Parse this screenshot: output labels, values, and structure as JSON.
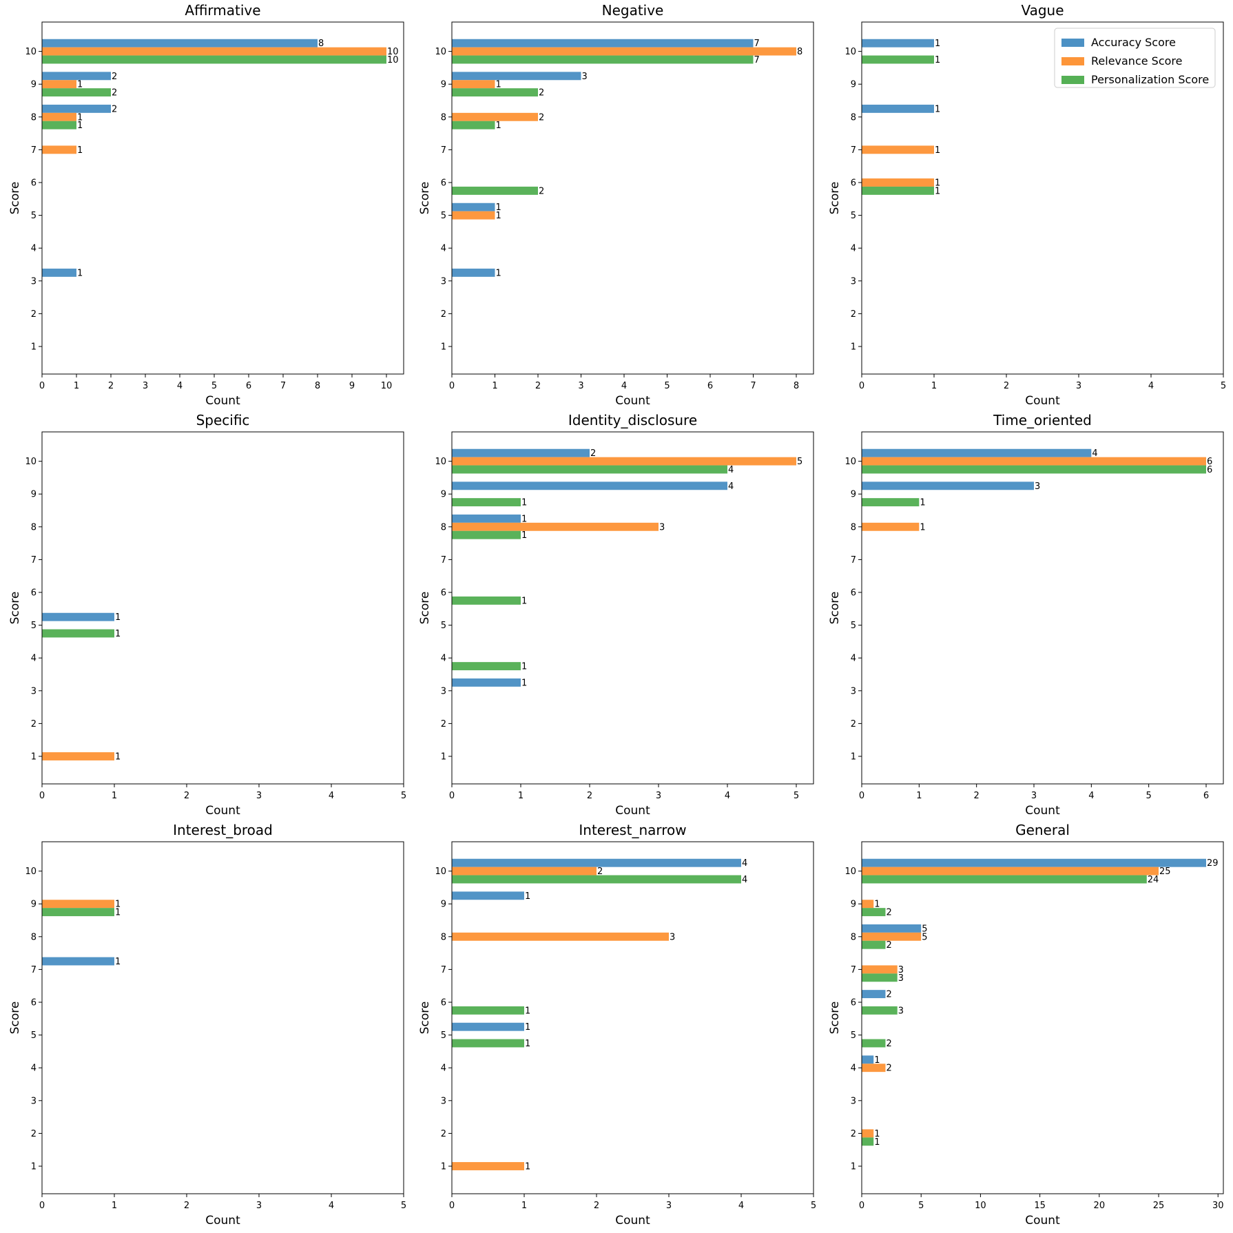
{
  "chart_data": {
    "type": "bar",
    "orientation": "horizontal",
    "legend": {
      "placement": "upper right of 'Vague' panel",
      "entries": [
        "Accuracy Score",
        "Relevance Score",
        "Personalization Score"
      ]
    },
    "colors": {
      "Accuracy Score": "#4c91c4",
      "Relevance Score": "#fd9539",
      "Personalization Score": "#55b055"
    },
    "panels": [
      {
        "title": "Affirmative",
        "xlabel": "Count",
        "ylabel": "Score",
        "xlim": [
          0,
          10.5
        ],
        "xticks": [
          0,
          1,
          2,
          3,
          4,
          5,
          6,
          7,
          8,
          9,
          10
        ],
        "y_categories": [
          1,
          2,
          3,
          4,
          5,
          6,
          7,
          8,
          9,
          10
        ],
        "series": [
          {
            "name": "Accuracy Score",
            "values": [
              0,
              0,
              1,
              0,
              0,
              0,
              0,
              2,
              2,
              8
            ]
          },
          {
            "name": "Relevance Score",
            "values": [
              0,
              0,
              0,
              0,
              0,
              0,
              1,
              1,
              1,
              10
            ]
          },
          {
            "name": "Personalization Score",
            "values": [
              0,
              0,
              0,
              0,
              0,
              0,
              0,
              1,
              2,
              10
            ]
          }
        ]
      },
      {
        "title": "Negative",
        "xlabel": "Count",
        "ylabel": "Score",
        "xlim": [
          0,
          8.4
        ],
        "xticks": [
          0,
          1,
          2,
          3,
          4,
          5,
          6,
          7,
          8
        ],
        "y_categories": [
          1,
          2,
          3,
          4,
          5,
          6,
          7,
          8,
          9,
          10
        ],
        "series": [
          {
            "name": "Accuracy Score",
            "values": [
              0,
              0,
              1,
              0,
              1,
              0,
              0,
              0,
              3,
              7
            ]
          },
          {
            "name": "Relevance Score",
            "values": [
              0,
              0,
              0,
              0,
              1,
              0,
              0,
              2,
              1,
              8
            ]
          },
          {
            "name": "Personalization Score",
            "values": [
              0,
              0,
              0,
              0,
              0,
              2,
              0,
              1,
              2,
              7
            ]
          }
        ]
      },
      {
        "title": "Vague",
        "xlabel": "Count",
        "ylabel": "Score",
        "xlim": [
          0,
          5
        ],
        "xticks": [
          0,
          1,
          2,
          3,
          4,
          5
        ],
        "y_categories": [
          1,
          2,
          3,
          4,
          5,
          6,
          7,
          8,
          9,
          10
        ],
        "series": [
          {
            "name": "Accuracy Score",
            "values": [
              0,
              0,
              0,
              0,
              0,
              0,
              0,
              1,
              0,
              1
            ]
          },
          {
            "name": "Relevance Score",
            "values": [
              0,
              0,
              0,
              0,
              0,
              1,
              1,
              0,
              0,
              0
            ]
          },
          {
            "name": "Personalization Score",
            "values": [
              0,
              0,
              0,
              0,
              0,
              1,
              0,
              0,
              0,
              1
            ]
          }
        ]
      },
      {
        "title": "Specific",
        "xlabel": "Count",
        "ylabel": "Score",
        "xlim": [
          0,
          5
        ],
        "xticks": [
          0,
          1,
          2,
          3,
          4,
          5
        ],
        "y_categories": [
          1,
          2,
          3,
          4,
          5,
          6,
          7,
          8,
          9,
          10
        ],
        "series": [
          {
            "name": "Accuracy Score",
            "values": [
              0,
              0,
              0,
              0,
              1,
              0,
              0,
              0,
              0,
              0
            ]
          },
          {
            "name": "Relevance Score",
            "values": [
              1,
              0,
              0,
              0,
              0,
              0,
              0,
              0,
              0,
              0
            ]
          },
          {
            "name": "Personalization Score",
            "values": [
              0,
              0,
              0,
              0,
              1,
              0,
              0,
              0,
              0,
              0
            ]
          }
        ]
      },
      {
        "title": "Identity_disclosure",
        "xlabel": "Count",
        "ylabel": "Score",
        "xlim": [
          0,
          5.25
        ],
        "xticks": [
          0,
          1,
          2,
          3,
          4,
          5
        ],
        "y_categories": [
          1,
          2,
          3,
          4,
          5,
          6,
          7,
          8,
          9,
          10
        ],
        "series": [
          {
            "name": "Accuracy Score",
            "values": [
              0,
              0,
              1,
              0,
              0,
              0,
              0,
              1,
              4,
              2
            ]
          },
          {
            "name": "Relevance Score",
            "values": [
              0,
              0,
              0,
              0,
              0,
              0,
              0,
              3,
              0,
              5
            ]
          },
          {
            "name": "Personalization Score",
            "values": [
              0,
              0,
              0,
              1,
              0,
              1,
              0,
              1,
              1,
              4
            ]
          }
        ]
      },
      {
        "title": "Time_oriented",
        "xlabel": "Count",
        "ylabel": "Score",
        "xlim": [
          0,
          6.3
        ],
        "xticks": [
          0,
          1,
          2,
          3,
          4,
          5,
          6
        ],
        "y_categories": [
          1,
          2,
          3,
          4,
          5,
          6,
          7,
          8,
          9,
          10
        ],
        "series": [
          {
            "name": "Accuracy Score",
            "values": [
              0,
              0,
              0,
              0,
              0,
              0,
              0,
              0,
              3,
              4
            ]
          },
          {
            "name": "Relevance Score",
            "values": [
              0,
              0,
              0,
              0,
              0,
              0,
              0,
              1,
              0,
              6
            ]
          },
          {
            "name": "Personalization Score",
            "values": [
              0,
              0,
              0,
              0,
              0,
              0,
              0,
              0,
              1,
              6
            ]
          }
        ]
      },
      {
        "title": "Interest_broad",
        "xlabel": "Count",
        "ylabel": "Score",
        "xlim": [
          0,
          5
        ],
        "xticks": [
          0,
          1,
          2,
          3,
          4,
          5
        ],
        "y_categories": [
          1,
          2,
          3,
          4,
          5,
          6,
          7,
          8,
          9,
          10
        ],
        "series": [
          {
            "name": "Accuracy Score",
            "values": [
              0,
              0,
              0,
              0,
              0,
              0,
              1,
              0,
              0,
              0
            ]
          },
          {
            "name": "Relevance Score",
            "values": [
              0,
              0,
              0,
              0,
              0,
              0,
              0,
              0,
              1,
              0
            ]
          },
          {
            "name": "Personalization Score",
            "values": [
              0,
              0,
              0,
              0,
              0,
              0,
              0,
              0,
              1,
              0
            ]
          }
        ]
      },
      {
        "title": "Interest_narrow",
        "xlabel": "Count",
        "ylabel": "Score",
        "xlim": [
          0,
          5
        ],
        "xticks": [
          0,
          1,
          2,
          3,
          4,
          5
        ],
        "y_categories": [
          1,
          2,
          3,
          4,
          5,
          6,
          7,
          8,
          9,
          10
        ],
        "series": [
          {
            "name": "Accuracy Score",
            "values": [
              0,
              0,
              0,
              0,
              1,
              0,
              0,
              0,
              1,
              4
            ]
          },
          {
            "name": "Relevance Score",
            "values": [
              1,
              0,
              0,
              0,
              0,
              0,
              0,
              3,
              0,
              2
            ]
          },
          {
            "name": "Personalization Score",
            "values": [
              0,
              0,
              0,
              0,
              1,
              1,
              0,
              0,
              0,
              4
            ]
          }
        ]
      },
      {
        "title": "General",
        "xlabel": "Count",
        "ylabel": "Score",
        "xlim": [
          0,
          30.45
        ],
        "xticks": [
          0,
          5,
          10,
          15,
          20,
          25,
          30
        ],
        "y_categories": [
          1,
          2,
          3,
          4,
          5,
          6,
          7,
          8,
          9,
          10
        ],
        "series": [
          {
            "name": "Accuracy Score",
            "values": [
              0,
              0,
              0,
              1,
              0,
              2,
              0,
              5,
              0,
              29
            ]
          },
          {
            "name": "Relevance Score",
            "values": [
              0,
              1,
              0,
              2,
              0,
              0,
              3,
              5,
              1,
              25
            ]
          },
          {
            "name": "Personalization Score",
            "values": [
              0,
              1,
              0,
              0,
              2,
              3,
              3,
              2,
              2,
              24
            ]
          }
        ]
      }
    ]
  }
}
